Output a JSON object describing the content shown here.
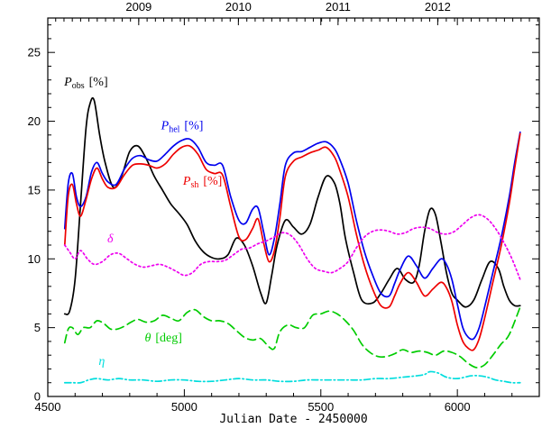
{
  "chart_data": {
    "type": "line",
    "title": "",
    "xlabel": "Julian Date - 2450000",
    "ylabel": "",
    "xlim": [
      4500,
      6300
    ],
    "ylim": [
      0,
      27.5
    ],
    "xticks": [
      4500,
      5000,
      5500,
      6000
    ],
    "xtick_labels": [
      "4500",
      "5000",
      "5500",
      "6000"
    ],
    "yticks": [
      0,
      5,
      10,
      15,
      20,
      25
    ],
    "ytick_labels": [
      "0",
      "5",
      "10",
      "15",
      "20",
      "25"
    ],
    "top_axis": {
      "labels": [
        "2009",
        "2010",
        "2011",
        "2012"
      ],
      "positions": [
        4833,
        5198,
        5563,
        5928
      ]
    },
    "grid": false,
    "legend": "none",
    "series": [
      {
        "key": "p_obs",
        "color": "#000000",
        "dash": "solid",
        "x": [
          4562,
          4580,
          4600,
          4620,
          4640,
          4655,
          4670,
          4690,
          4710,
          4740,
          4770,
          4800,
          4830,
          4860,
          4890,
          4920,
          4950,
          4980,
          5010,
          5040,
          5070,
          5100,
          5130,
          5160,
          5190,
          5220,
          5250,
          5280,
          5300,
          5320,
          5340,
          5370,
          5400,
          5430,
          5460,
          5490,
          5520,
          5550,
          5570,
          5590,
          5620,
          5650,
          5690,
          5720,
          5750,
          5780,
          5810,
          5840,
          5860,
          5880,
          5900,
          5920,
          5940,
          5960,
          5980,
          6000,
          6030,
          6060,
          6090,
          6120,
          6150,
          6170,
          6190,
          6210,
          6230
        ],
        "y": [
          6.0,
          6.2,
          8.5,
          14.0,
          19.5,
          21.3,
          21.5,
          19.0,
          17.0,
          15.2,
          16.0,
          17.8,
          18.2,
          17.3,
          16.0,
          15.0,
          14.0,
          13.3,
          12.5,
          11.3,
          10.5,
          10.1,
          10.0,
          10.3,
          11.5,
          11.0,
          9.5,
          7.5,
          6.8,
          8.8,
          11.0,
          12.8,
          12.3,
          11.8,
          12.5,
          14.5,
          16.0,
          15.5,
          14.0,
          11.5,
          9.0,
          7.0,
          6.8,
          7.5,
          8.5,
          9.3,
          8.5,
          8.3,
          9.5,
          12.0,
          13.6,
          13.2,
          11.2,
          9.0,
          7.5,
          7.0,
          6.5,
          7.0,
          8.5,
          9.8,
          9.3,
          8.0,
          7.0,
          6.6,
          6.6
        ]
      },
      {
        "key": "p_hel",
        "color": "#0000ee",
        "dash": "solid",
        "x": [
          4562,
          4575,
          4590,
          4605,
          4620,
          4640,
          4660,
          4680,
          4700,
          4720,
          4750,
          4780,
          4810,
          4840,
          4870,
          4900,
          4930,
          4960,
          4990,
          5020,
          5050,
          5080,
          5110,
          5140,
          5170,
          5200,
          5225,
          5250,
          5270,
          5290,
          5310,
          5330,
          5350,
          5370,
          5400,
          5430,
          5460,
          5490,
          5520,
          5550,
          5570,
          5600,
          5630,
          5660,
          5690,
          5720,
          5750,
          5770,
          5790,
          5820,
          5850,
          5880,
          5910,
          5940,
          5960,
          5980,
          6000,
          6020,
          6040,
          6060,
          6080,
          6100,
          6130,
          6160,
          6190,
          6210,
          6230
        ],
        "y": [
          12.2,
          15.5,
          16.2,
          14.5,
          13.8,
          14.5,
          16.3,
          17.0,
          16.2,
          15.6,
          15.4,
          16.5,
          17.3,
          17.5,
          17.2,
          17.1,
          17.6,
          18.2,
          18.6,
          18.7,
          18.1,
          17.0,
          16.8,
          16.8,
          14.5,
          12.8,
          12.6,
          13.6,
          13.7,
          12.0,
          10.3,
          11.5,
          14.0,
          16.8,
          17.7,
          17.8,
          18.1,
          18.4,
          18.5,
          18.0,
          17.2,
          15.5,
          12.8,
          10.5,
          8.8,
          7.5,
          7.3,
          8.2,
          9.2,
          10.2,
          9.5,
          8.6,
          9.3,
          10.0,
          9.6,
          8.5,
          6.7,
          5.0,
          4.3,
          4.2,
          5.0,
          6.5,
          9.0,
          11.5,
          14.5,
          17.0,
          19.2
        ]
      },
      {
        "key": "p_sh",
        "color": "#ee0000",
        "dash": "solid",
        "x": [
          4562,
          4575,
          4590,
          4605,
          4620,
          4640,
          4660,
          4680,
          4700,
          4720,
          4750,
          4780,
          4810,
          4840,
          4870,
          4900,
          4930,
          4960,
          4990,
          5020,
          5050,
          5080,
          5110,
          5140,
          5170,
          5200,
          5225,
          5250,
          5270,
          5290,
          5310,
          5330,
          5350,
          5370,
          5400,
          5430,
          5460,
          5490,
          5520,
          5550,
          5570,
          5600,
          5630,
          5660,
          5690,
          5720,
          5750,
          5770,
          5790,
          5820,
          5850,
          5880,
          5910,
          5940,
          5960,
          5980,
          6000,
          6020,
          6040,
          6060,
          6080,
          6100,
          6130,
          6160,
          6190,
          6210,
          6230
        ],
        "y": [
          11.0,
          14.6,
          15.4,
          14.0,
          13.1,
          14.3,
          15.8,
          16.6,
          15.8,
          15.2,
          15.2,
          16.1,
          16.8,
          16.9,
          16.8,
          16.6,
          16.9,
          17.6,
          18.1,
          18.2,
          17.6,
          16.5,
          16.2,
          16.1,
          13.8,
          11.6,
          11.4,
          12.2,
          12.9,
          11.2,
          9.8,
          10.6,
          13.0,
          16.0,
          17.1,
          17.4,
          17.7,
          17.9,
          18.1,
          17.4,
          16.4,
          14.5,
          11.8,
          9.5,
          7.8,
          6.6,
          6.5,
          7.3,
          8.2,
          9.0,
          8.3,
          7.3,
          7.8,
          8.3,
          7.9,
          6.9,
          5.2,
          4.0,
          3.5,
          3.4,
          4.2,
          5.7,
          8.3,
          10.9,
          14.0,
          16.6,
          19.1
        ]
      },
      {
        "key": "delta",
        "color": "#ee00ee",
        "dash": "2,3",
        "x": [
          4562,
          4580,
          4600,
          4620,
          4645,
          4670,
          4700,
          4730,
          4760,
          4790,
          4820,
          4850,
          4880,
          4910,
          4940,
          4970,
          5000,
          5030,
          5060,
          5090,
          5120,
          5150,
          5180,
          5210,
          5240,
          5270,
          5300,
          5330,
          5360,
          5390,
          5420,
          5450,
          5480,
          5510,
          5540,
          5570,
          5600,
          5630,
          5660,
          5690,
          5720,
          5750,
          5780,
          5810,
          5840,
          5870,
          5900,
          5930,
          5960,
          5990,
          6020,
          6050,
          6080,
          6110,
          6140,
          6170,
          6200,
          6230
        ],
        "y": [
          11.0,
          10.5,
          10.0,
          10.6,
          10.0,
          9.6,
          9.8,
          10.3,
          10.4,
          10.0,
          9.6,
          9.4,
          9.5,
          9.6,
          9.4,
          9.1,
          8.8,
          9.0,
          9.6,
          9.8,
          9.8,
          9.9,
          10.3,
          10.7,
          10.8,
          11.1,
          11.3,
          11.6,
          11.9,
          11.7,
          11.0,
          10.0,
          9.3,
          9.1,
          9.0,
          9.3,
          9.8,
          10.8,
          11.6,
          12.0,
          12.1,
          12.0,
          11.8,
          11.9,
          12.2,
          12.3,
          12.2,
          11.9,
          11.8,
          12.0,
          12.5,
          13.0,
          13.2,
          12.9,
          12.2,
          11.2,
          10.0,
          8.5
        ]
      },
      {
        "key": "theta",
        "color": "#00cc00",
        "dash": "9,5",
        "x": [
          4562,
          4575,
          4590,
          4610,
          4630,
          4655,
          4680,
          4705,
          4730,
          4755,
          4780,
          4805,
          4830,
          4860,
          4890,
          4920,
          4950,
          4980,
          5010,
          5040,
          5070,
          5100,
          5130,
          5160,
          5190,
          5220,
          5250,
          5280,
          5310,
          5330,
          5350,
          5380,
          5410,
          5440,
          5470,
          5500,
          5530,
          5560,
          5590,
          5620,
          5650,
          5680,
          5710,
          5740,
          5770,
          5800,
          5830,
          5860,
          5890,
          5920,
          5950,
          5980,
          6010,
          6040,
          6070,
          6100,
          6130,
          6160,
          6190,
          6230
        ],
        "y": [
          3.9,
          4.9,
          5.0,
          4.5,
          5.0,
          5.0,
          5.5,
          5.3,
          4.9,
          4.9,
          5.1,
          5.4,
          5.6,
          5.4,
          5.5,
          5.9,
          5.7,
          5.5,
          6.1,
          6.3,
          5.8,
          5.5,
          5.5,
          5.3,
          4.8,
          4.3,
          4.1,
          4.2,
          3.6,
          3.5,
          4.7,
          5.2,
          5.0,
          5.0,
          5.9,
          6.0,
          6.2,
          6.0,
          5.5,
          4.8,
          3.8,
          3.2,
          2.9,
          2.9,
          3.1,
          3.4,
          3.2,
          3.3,
          3.2,
          3.0,
          3.3,
          3.2,
          2.9,
          2.4,
          2.1,
          2.3,
          3.0,
          3.8,
          4.5,
          6.5
        ]
      },
      {
        "key": "eta",
        "color": "#00dddd",
        "dash": "7,3,1.5,3",
        "x": [
          4562,
          4590,
          4620,
          4650,
          4680,
          4720,
          4760,
          4800,
          4850,
          4900,
          4950,
          5000,
          5050,
          5100,
          5150,
          5200,
          5250,
          5300,
          5350,
          5400,
          5450,
          5500,
          5550,
          5600,
          5650,
          5700,
          5750,
          5800,
          5850,
          5880,
          5900,
          5930,
          5960,
          6000,
          6050,
          6080,
          6110,
          6140,
          6170,
          6200,
          6230
        ],
        "y": [
          1.0,
          1.0,
          1.0,
          1.2,
          1.3,
          1.2,
          1.3,
          1.2,
          1.2,
          1.1,
          1.2,
          1.2,
          1.1,
          1.1,
          1.2,
          1.3,
          1.2,
          1.2,
          1.1,
          1.1,
          1.2,
          1.2,
          1.2,
          1.2,
          1.2,
          1.3,
          1.3,
          1.4,
          1.5,
          1.6,
          1.8,
          1.7,
          1.4,
          1.3,
          1.5,
          1.5,
          1.4,
          1.2,
          1.1,
          1.0,
          1.0
        ]
      }
    ],
    "annotations": [
      {
        "key": "p_obs",
        "color": "#000000",
        "sym": "P",
        "sub": "obs",
        "unit": "[%]",
        "x": 4560,
        "y": 22.6
      },
      {
        "key": "p_hel",
        "color": "#0000ee",
        "sym": "P",
        "sub": "hel",
        "unit": "[%]",
        "x": 4915,
        "y": 19.4
      },
      {
        "key": "p_sh",
        "color": "#ee0000",
        "sym": "P",
        "sub": "sh",
        "unit": "[%]",
        "x": 4995,
        "y": 15.4
      },
      {
        "key": "delta",
        "color": "#ee00ee",
        "sym": "δ",
        "sub": "",
        "unit": "",
        "x": 4718,
        "y": 11.2
      },
      {
        "key": "theta",
        "color": "#00cc00",
        "sym": "θ",
        "sub": "",
        "unit": "[deg]",
        "x": 4855,
        "y": 4.0
      },
      {
        "key": "eta",
        "color": "#00dddd",
        "sym": "η",
        "sub": "",
        "unit": "",
        "x": 4686,
        "y": 2.3
      }
    ]
  }
}
